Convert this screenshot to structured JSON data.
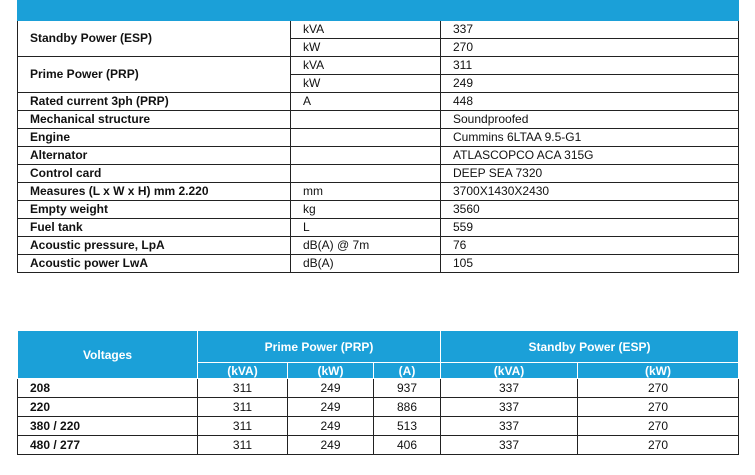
{
  "spec_table": {
    "groups": [
      {
        "label": "Standby Power (ESP)",
        "lines": [
          {
            "unit": "kVA",
            "value": "337"
          },
          {
            "unit": "kW",
            "value": "270"
          }
        ]
      },
      {
        "label": "Prime Power (PRP)",
        "lines": [
          {
            "unit": "kVA",
            "value": "311"
          },
          {
            "unit": "kW",
            "value": "249"
          }
        ]
      },
      {
        "label": "Rated current 3ph (PRP)",
        "lines": [
          {
            "unit": "A",
            "value": "448"
          }
        ]
      },
      {
        "label": "Mechanical structure",
        "lines": [
          {
            "value": "Soundproofed"
          }
        ]
      },
      {
        "label": "Engine",
        "lines": [
          {
            "value": "Cummins 6LTAA 9.5-G1"
          }
        ]
      },
      {
        "label": "Alternator",
        "lines": [
          {
            "value": "ATLASCOPCO ACA 315G"
          }
        ]
      },
      {
        "label": "Control card",
        "lines": [
          {
            "value": "DEEP SEA 7320"
          }
        ]
      },
      {
        "label": "Measures (L x W x H) mm 2.220",
        "lines": [
          {
            "unit": "mm",
            "value": "3700X1430X2430"
          }
        ]
      },
      {
        "label": "Empty weight",
        "lines": [
          {
            "unit": "kg",
            "value": "3560"
          }
        ]
      },
      {
        "label": "Fuel tank",
        "lines": [
          {
            "unit": "L",
            "value": "559"
          }
        ]
      },
      {
        "label": "Acoustic pressure, LpA",
        "lines": [
          {
            "unit": "dB(A) @ 7m",
            "value": "76"
          }
        ]
      },
      {
        "label": "Acoustic power LwA",
        "lines": [
          {
            "unit": "dB(A)",
            "value": "105"
          }
        ]
      }
    ]
  },
  "voltage_table": {
    "header": "Voltages",
    "prime": "Prime Power (PRP)",
    "standby": "Standby Power (ESP)",
    "subheaders": [
      "(kVA)",
      "(kW)",
      "(A)",
      "(kVA)",
      "(kW)"
    ],
    "rows": [
      [
        "208",
        311,
        249,
        937,
        337,
        270
      ],
      [
        "220",
        311,
        249,
        886,
        337,
        270
      ],
      [
        "380 / 220",
        311,
        249,
        513,
        337,
        270
      ],
      [
        "480 / 277",
        311,
        249,
        406,
        337,
        270
      ]
    ]
  }
}
